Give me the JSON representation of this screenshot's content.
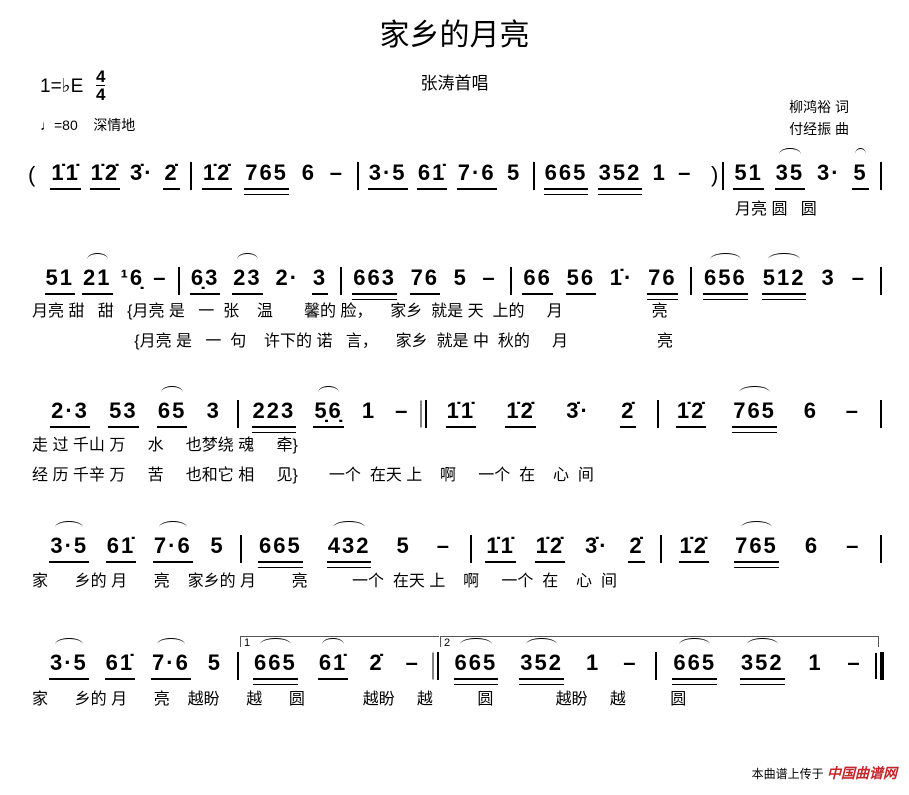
{
  "title": "家乡的月亮",
  "singer": "张涛首唱",
  "key": "1=♭E",
  "time_signature": {
    "top": "4",
    "bottom": "4"
  },
  "tempo": "♩=80",
  "expression": "深情地",
  "lyricist": "柳鸿裕 词",
  "composer": "付经振 曲",
  "rows": [
    {
      "measures": [
        {
          "tokens": [
            {
              "t": "1̇1̇",
              "u": 1
            },
            {
              "t": "1̇2̇",
              "u": 1
            },
            {
              "t": "3̇·"
            },
            {
              "t": "2̇",
              "u": 1
            }
          ]
        },
        {
          "tokens": [
            {
              "t": "1̇2̇",
              "u": 1
            },
            {
              "t": "765",
              "u": 2
            },
            {
              "t": "6"
            },
            {
              "t": "–"
            }
          ]
        },
        {
          "tokens": [
            {
              "t": "3·5",
              "u": 1
            },
            {
              "t": "61̇",
              "u": 1
            },
            {
              "t": "7·6",
              "u": 1
            },
            {
              "t": "5"
            }
          ]
        },
        {
          "tokens": [
            {
              "t": "665",
              "u": 2
            },
            {
              "t": "352",
              "u": 2
            },
            {
              "t": "1"
            },
            {
              "t": "–"
            }
          ]
        },
        {
          "tokens": [
            {
              "t": "51",
              "u": 1
            },
            {
              "t": "35",
              "u": 1,
              "slur": true
            },
            {
              "t": "3·"
            },
            {
              "t": "5",
              "u": 1,
              "slur": true
            }
          ]
        }
      ],
      "open_paren": "(",
      "close_paren": ")",
      "lyrics": [
        "月亮 圆   圆"
      ]
    },
    {
      "measures": [
        {
          "tokens": [
            {
              "t": "51",
              "u": 1
            },
            {
              "t": "21",
              "u": 1,
              "slur": true
            },
            {
              "t": "¹6̣"
            },
            {
              "t": "–"
            }
          ]
        },
        {
          "tokens": [
            {
              "t": "6̣3",
              "u": 1
            },
            {
              "t": "23",
              "u": 1,
              "slur": true
            },
            {
              "t": "2·"
            },
            {
              "t": "3",
              "u": 1
            }
          ]
        },
        {
          "tokens": [
            {
              "t": "663",
              "u": 2
            },
            {
              "t": "76",
              "u": 1
            },
            {
              "t": "5"
            },
            {
              "t": "–"
            }
          ]
        },
        {
          "tokens": [
            {
              "t": "66",
              "u": 1
            },
            {
              "t": "56",
              "u": 1
            },
            {
              "t": "1̇·"
            },
            {
              "t": "76",
              "u": 2
            }
          ]
        },
        {
          "tokens": [
            {
              "t": "656",
              "u": 2,
              "slur": true
            },
            {
              "t": "512",
              "u": 2,
              "slur": true
            },
            {
              "t": "3"
            },
            {
              "t": "–"
            }
          ]
        }
      ],
      "lyrics": [
        "月亮 甜   甜   {月亮 是   一  张    温       馨的 脸，    家乡  就是 天  上的     月                    亮",
        "                       {月亮 是   一  句    许下的 诺   言，    家乡  就是 中  秋的     月                    亮"
      ]
    },
    {
      "measures": [
        {
          "tokens": [
            {
              "t": "2·3",
              "u": 1
            },
            {
              "t": "53",
              "u": 1
            },
            {
              "t": "65",
              "u": 1,
              "slur": true
            },
            {
              "t": "3"
            }
          ]
        },
        {
          "tokens": [
            {
              "t": "223",
              "u": 2
            },
            {
              "t": "5̣6̣",
              "u": 1,
              "slur": true
            },
            {
              "t": "1"
            },
            {
              "t": "–"
            }
          ]
        },
        {
          "tokens": [
            {
              "t": "1̇1̇",
              "u": 1
            },
            {
              "t": "1̇2̇",
              "u": 1
            },
            {
              "t": "3̇·"
            },
            {
              "t": "2̇",
              "u": 1
            }
          ]
        },
        {
          "tokens": [
            {
              "t": "1̇2̇",
              "u": 1
            },
            {
              "t": "765",
              "u": 2,
              "slur": true
            },
            {
              "t": "6"
            },
            {
              "t": "–"
            }
          ]
        }
      ],
      "lyrics": [
        "走 过 千山 万     水     也梦绕 魂     牵}",
        "经 历 千辛 万     苦     也和它 相     见}       一个  在天 上    啊     一个  在    心  间"
      ]
    },
    {
      "measures": [
        {
          "tokens": [
            {
              "t": "3·5",
              "u": 1,
              "slur": true
            },
            {
              "t": "61̇",
              "u": 1
            },
            {
              "t": "7·6",
              "u": 1,
              "slur": true
            },
            {
              "t": "5"
            }
          ]
        },
        {
          "tokens": [
            {
              "t": "665",
              "u": 2
            },
            {
              "t": "432",
              "u": 2,
              "slur": true
            },
            {
              "t": "5"
            },
            {
              "t": "–"
            }
          ]
        },
        {
          "tokens": [
            {
              "t": "1̇1̇",
              "u": 1
            },
            {
              "t": "1̇2̇",
              "u": 1
            },
            {
              "t": "3̇·"
            },
            {
              "t": "2̇",
              "u": 1
            }
          ]
        },
        {
          "tokens": [
            {
              "t": "1̇2̇",
              "u": 1
            },
            {
              "t": "765",
              "u": 2,
              "slur": true
            },
            {
              "t": "6"
            },
            {
              "t": "–"
            }
          ]
        }
      ],
      "lyrics": [
        "家      乡的 月      亮    家乡的 月        亮          一个  在天 上    啊     一个  在    心  间"
      ]
    },
    {
      "measures": [
        {
          "tokens": [
            {
              "t": "3·5",
              "u": 1,
              "slur": true
            },
            {
              "t": "61̇",
              "u": 1
            },
            {
              "t": "7·6",
              "u": 1,
              "slur": true
            },
            {
              "t": "5"
            }
          ]
        },
        {
          "tokens": [
            {
              "t": "665",
              "u": 2,
              "slur": true
            },
            {
              "t": "61̇",
              "u": 1,
              "slur": true
            },
            {
              "t": "2̇"
            },
            {
              "t": "–"
            }
          ]
        },
        {
          "tokens": [
            {
              "t": "665",
              "u": 2,
              "slur": true
            },
            {
              "t": "352",
              "u": 2,
              "slur": true
            },
            {
              "t": "1"
            },
            {
              "t": "–"
            }
          ]
        },
        {
          "tokens": [
            {
              "t": "665",
              "u": 2,
              "slur": true
            },
            {
              "t": "352",
              "u": 2,
              "slur": true
            },
            {
              "t": "1"
            },
            {
              "t": "–"
            }
          ]
        }
      ],
      "volta": [
        "1",
        "2"
      ],
      "lyrics": [
        "家      乡的 月      亮    越盼      越      圆             越盼     越          圆              越盼     越          圆"
      ]
    }
  ],
  "footer": {
    "text": "本曲谱上传于",
    "site": "中国曲谱网"
  }
}
